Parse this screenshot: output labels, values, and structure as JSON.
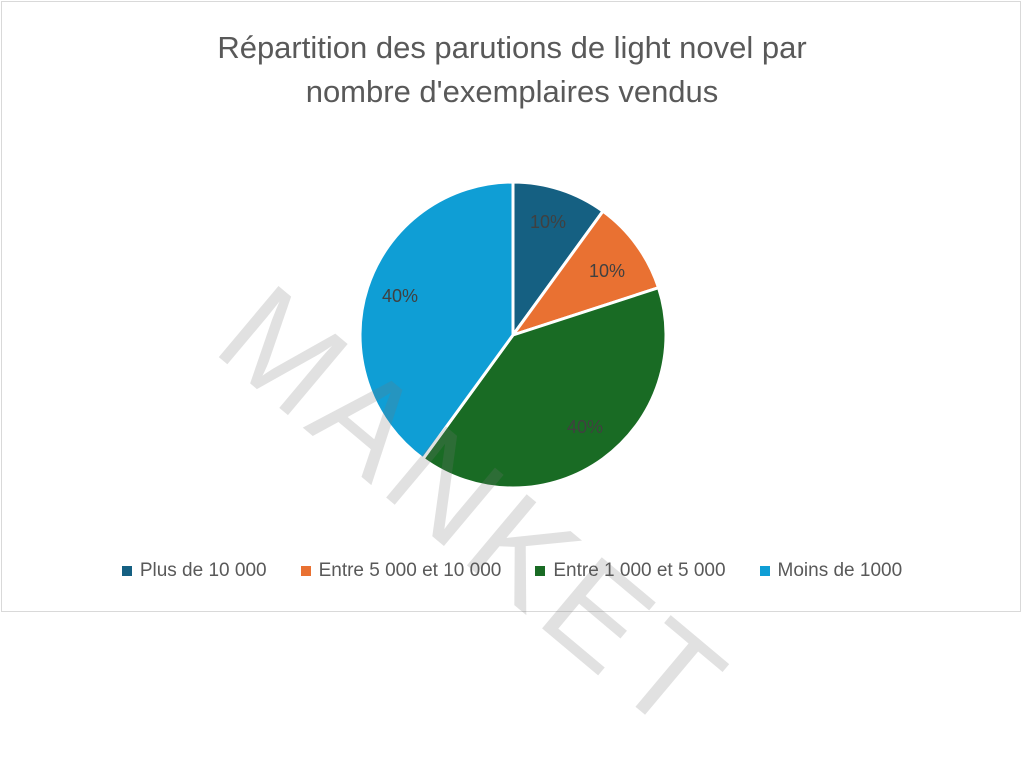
{
  "chart_data": {
    "type": "pie",
    "title": "Répartition des parutions de light novel par nombre d'exemplaires vendus",
    "title_lines": [
      "Répartition des parutions de light novel par",
      "nombre d'exemplaires vendus"
    ],
    "categories": [
      "Plus de 10 000",
      "Entre 5 000 et 10 000",
      "Entre 1 000 et 5 000",
      "Moins de 1000"
    ],
    "values": [
      10,
      10,
      40,
      40
    ],
    "labels": [
      "10%",
      "10%",
      "40%",
      "40%"
    ],
    "colors": [
      "#156082",
      "#E97132",
      "#196B24",
      "#0F9ED5"
    ],
    "legend_position": "bottom",
    "watermark": "MANKET"
  }
}
